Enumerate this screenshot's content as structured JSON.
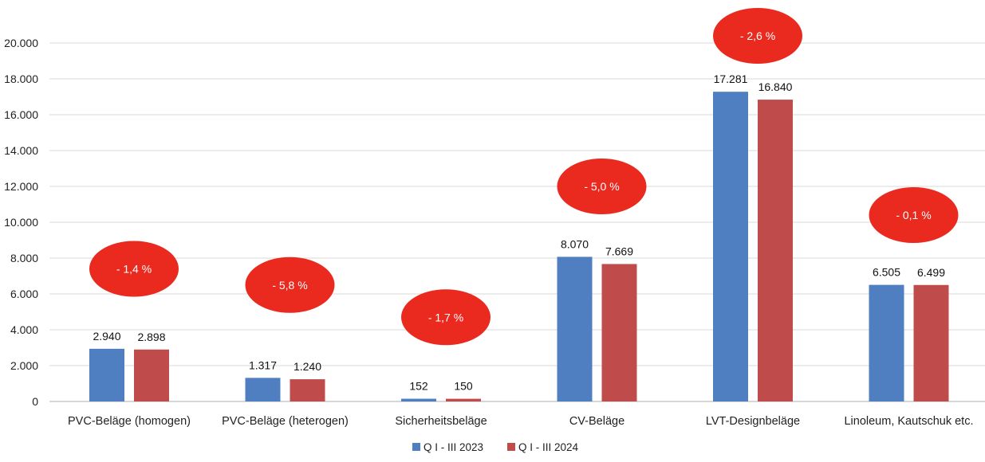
{
  "colors": {
    "series_2023": "#4f7fc0",
    "series_2024": "#bf4c4a",
    "badge": "#ea2a1f",
    "gridline": "#d9d9d9",
    "axis": "#bfbfbf"
  },
  "chart_data": {
    "type": "bar",
    "title": "",
    "xlabel": "",
    "ylabel": "",
    "ylim": [
      0,
      20000
    ],
    "yticks": [
      0,
      2000,
      4000,
      6000,
      8000,
      10000,
      12000,
      14000,
      16000,
      18000,
      20000
    ],
    "ytick_labels": [
      "0",
      "2.000",
      "4.000",
      "6.000",
      "8.000",
      "10.000",
      "12.000",
      "14.000",
      "16.000",
      "18.000",
      "20.000"
    ],
    "grid": true,
    "legend_position": "bottom-center",
    "categories": [
      "PVC-Beläge (homogen)",
      "PVC-Beläge (heterogen)",
      "Sicherheitsbeläge",
      "CV-Beläge",
      "LVT-Designbeläge",
      "Linoleum, Kautschuk etc."
    ],
    "series": [
      {
        "name": "Q I - III 2023",
        "values": [
          2940,
          1317,
          152,
          8070,
          17281,
          6505
        ],
        "labels": [
          "2.940",
          "1.317",
          "152",
          "8.070",
          "17.281",
          "6.505"
        ]
      },
      {
        "name": "Q I - III 2024",
        "values": [
          2898,
          1240,
          150,
          7669,
          16840,
          6499
        ],
        "labels": [
          "2.898",
          "1.240",
          "150",
          "7.669",
          "16.840",
          "6.499"
        ]
      }
    ],
    "change_annotations": [
      "- 1,4 %",
      "- 5,8 %",
      "- 1,7 %",
      "- 5,0 %",
      "- 2,6 %",
      "- 0,1  %"
    ],
    "annotation_anchor_values": [
      7400,
      6500,
      4700,
      12000,
      20400,
      10400
    ]
  }
}
